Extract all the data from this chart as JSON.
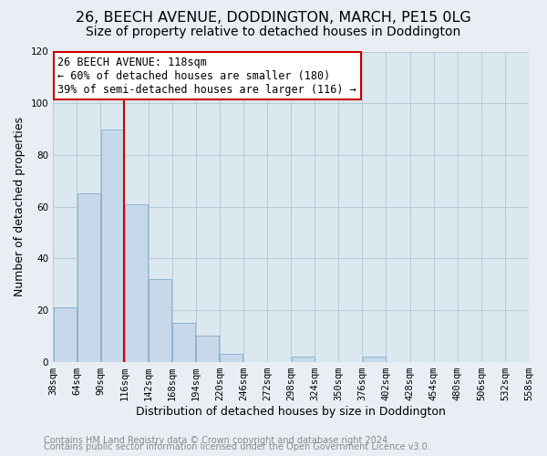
{
  "title": "26, BEECH AVENUE, DODDINGTON, MARCH, PE15 0LG",
  "subtitle": "Size of property relative to detached houses in Doddington",
  "xlabel": "Distribution of detached houses by size in Doddington",
  "ylabel": "Number of detached properties",
  "footer_lines": [
    "Contains HM Land Registry data © Crown copyright and database right 2024.",
    "Contains public sector information licensed under the Open Government Licence v3.0."
  ],
  "bins": [
    38,
    64,
    90,
    116,
    142,
    168,
    194,
    220,
    246,
    272,
    298,
    324,
    350,
    376,
    402,
    428,
    454,
    480,
    506,
    532,
    558
  ],
  "counts": [
    21,
    65,
    90,
    61,
    32,
    15,
    10,
    3,
    0,
    0,
    2,
    0,
    0,
    2,
    0,
    0,
    0,
    0,
    0,
    0
  ],
  "bar_color": "#c8d8eb",
  "bar_edge_color": "#8ab4d0",
  "vline_x": 116,
  "vline_color": "#cc0000",
  "annotation_title": "26 BEECH AVENUE: 118sqm",
  "annotation_line1": "← 60% of detached houses are smaller (180)",
  "annotation_line2": "39% of semi-detached houses are larger (116) →",
  "annotation_box_color": "#ffffff",
  "annotation_box_edge": "#cc0000",
  "ylim": [
    0,
    120
  ],
  "yticks": [
    0,
    20,
    40,
    60,
    80,
    100,
    120
  ],
  "tick_labels": [
    "38sqm",
    "64sqm",
    "90sqm",
    "116sqm",
    "142sqm",
    "168sqm",
    "194sqm",
    "220sqm",
    "246sqm",
    "272sqm",
    "298sqm",
    "324sqm",
    "350sqm",
    "376sqm",
    "402sqm",
    "428sqm",
    "454sqm",
    "480sqm",
    "506sqm",
    "532sqm",
    "558sqm"
  ],
  "background_color": "#e8eef4",
  "plot_bg_color": "#dce8f0",
  "grid_color": "#b8ccd8",
  "title_fontsize": 11.5,
  "subtitle_fontsize": 10,
  "axis_label_fontsize": 9,
  "tick_fontsize": 7.5,
  "footer_fontsize": 7,
  "annotation_fontsize": 8.5
}
